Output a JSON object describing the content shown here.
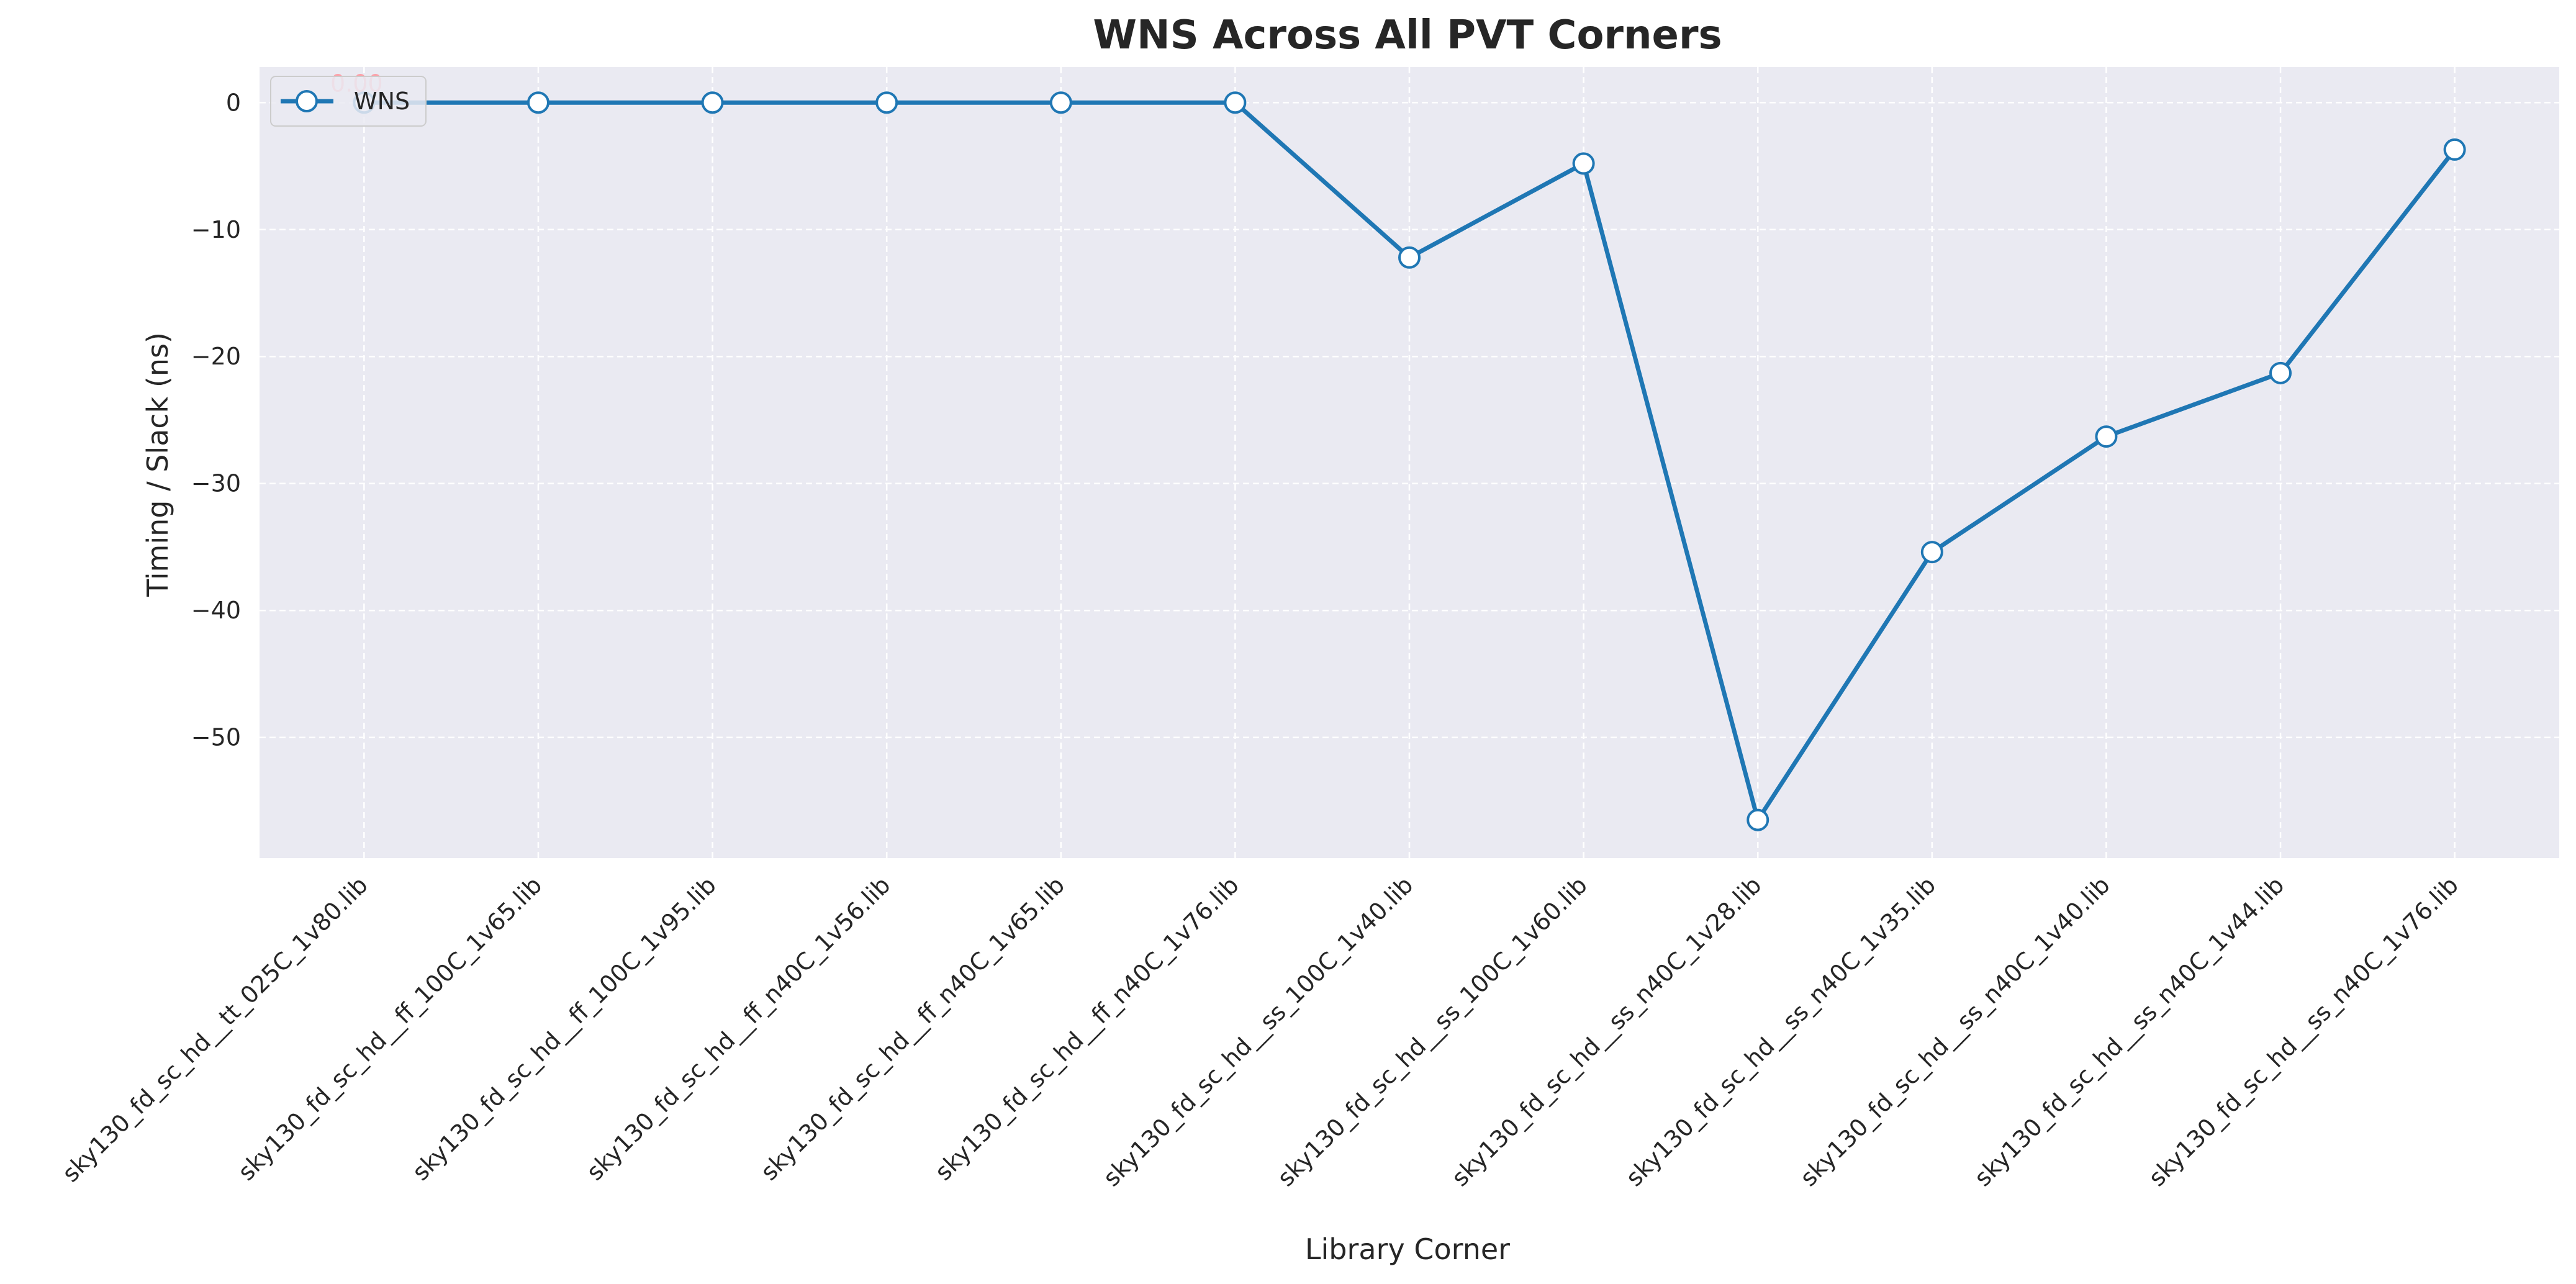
{
  "chart_data": {
    "type": "line",
    "title": "WNS Across All PVT Corners",
    "xlabel": "Library Corner",
    "ylabel": "Timing / Slack (ns)",
    "categories": [
      "sky130_fd_sc_hd__tt_025C_1v80.lib",
      "sky130_fd_sc_hd__ff_100C_1v65.lib",
      "sky130_fd_sc_hd__ff_100C_1v95.lib",
      "sky130_fd_sc_hd__ff_n40C_1v56.lib",
      "sky130_fd_sc_hd__ff_n40C_1v65.lib",
      "sky130_fd_sc_hd__ff_n40C_1v76.lib",
      "sky130_fd_sc_hd__ss_100C_1v40.lib",
      "sky130_fd_sc_hd__ss_100C_1v60.lib",
      "sky130_fd_sc_hd__ss_n40C_1v28.lib",
      "sky130_fd_sc_hd__ss_n40C_1v35.lib",
      "sky130_fd_sc_hd__ss_n40C_1v40.lib",
      "sky130_fd_sc_hd__ss_n40C_1v44.lib",
      "sky130_fd_sc_hd__ss_n40C_1v76.lib"
    ],
    "series": [
      {
        "name": "WNS",
        "values": [
          0,
          0,
          0,
          0,
          0,
          0,
          -12.2,
          -4.8,
          -56.5,
          -35.4,
          -26.3,
          -21.3,
          -3.7
        ],
        "color": "#1f77b4"
      }
    ],
    "yticks": [
      0,
      -10,
      -20,
      -30,
      -40,
      -50
    ],
    "ylim": [
      -59.5,
      2.8
    ],
    "grid": true,
    "legend": "top-left",
    "annotations": [
      {
        "category_index": 0,
        "text": "0.00"
      }
    ],
    "colors": {
      "plot_background": "#eaeaf2",
      "grid": "#ffffff",
      "marker_fill": "#ffffff",
      "annotation": "#ff9aa2"
    }
  }
}
